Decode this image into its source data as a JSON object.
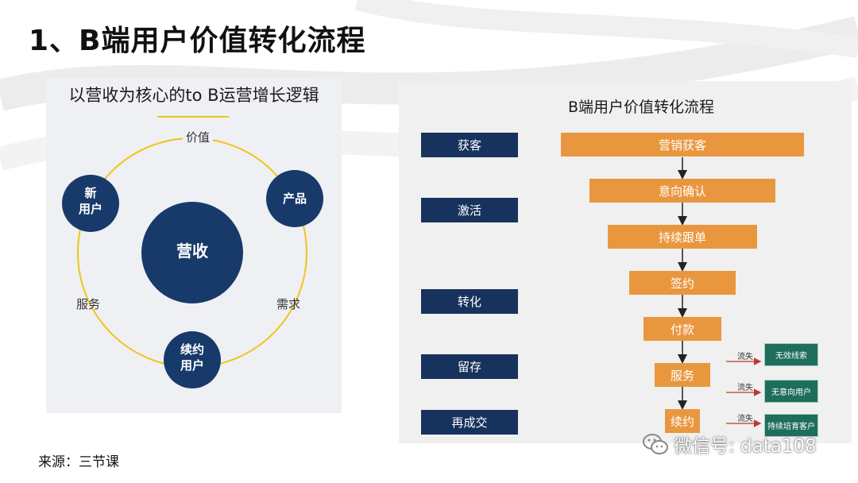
{
  "page": {
    "title": "1、B端用户价值转化流程",
    "source": "来源：三节课",
    "watermark": "微信号: data108"
  },
  "left_diagram": {
    "title": "以营收为核心的to B运营增长逻辑",
    "center": "营收",
    "nodes": {
      "new_user": "新\n用户",
      "product": "产品",
      "renewal_user": "续约\n用户"
    },
    "ring_labels": {
      "value": "价值",
      "service": "服务",
      "demand": "需求"
    },
    "colors": {
      "circle": "#183a6b",
      "ring": "#f2c418"
    }
  },
  "right_diagram": {
    "title": "B端用户价值转化流程",
    "stages": [
      "获客",
      "激活",
      "转化",
      "留存",
      "再成交"
    ],
    "funnel_steps": [
      "营销获客",
      "意向确认",
      "持续跟单",
      "签约",
      "付款",
      "服务",
      "续约"
    ],
    "churn_label": "流失",
    "churn_outcomes": [
      "无效线索",
      "无意向用户",
      "持续培育客户"
    ],
    "colors": {
      "stage": "#17325c",
      "funnel": "#e9973f",
      "churn_box": "#1e6e5c",
      "churn_arrow": "#c0392b"
    }
  }
}
